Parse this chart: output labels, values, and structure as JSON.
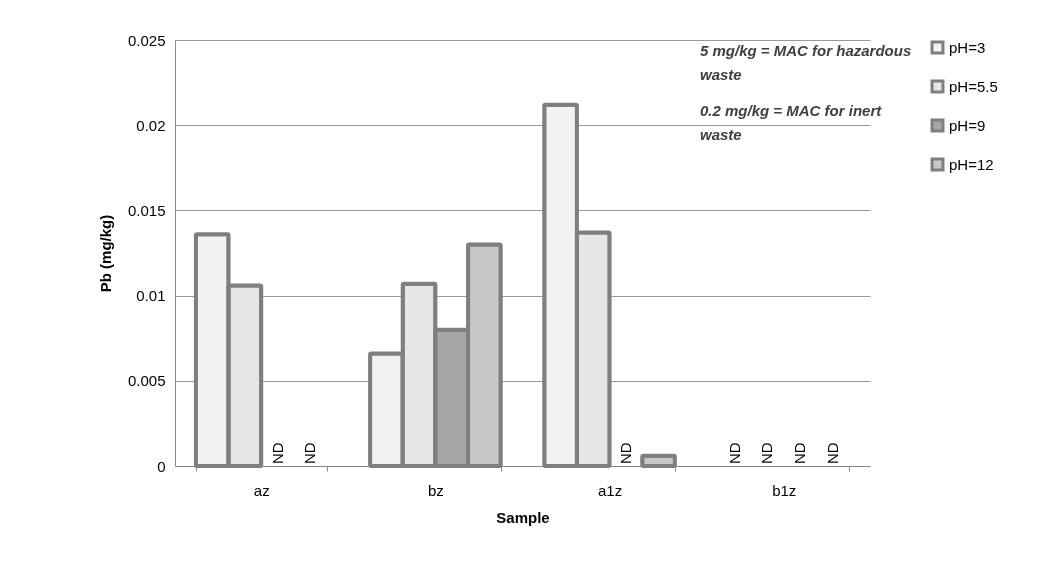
{
  "chart_data": {
    "type": "bar",
    "xlabel": "Sample",
    "ylabel": "Pb (mg/kg)",
    "categories": [
      "az",
      "bz",
      "a1z",
      "b1z"
    ],
    "series": [
      {
        "name": "pH=3",
        "color": "#f2f2f2",
        "values": [
          0.0136,
          0.0066,
          0.0212,
          null
        ],
        "value_labels": [
          null,
          null,
          null,
          "ND"
        ]
      },
      {
        "name": "pH=5.5",
        "color": "#e6e6e6",
        "values": [
          0.0106,
          0.0107,
          0.0137,
          null
        ],
        "value_labels": [
          null,
          null,
          null,
          "ND"
        ]
      },
      {
        "name": "pH=9",
        "color": "#a6a6a6",
        "values": [
          null,
          0.008,
          null,
          null
        ],
        "value_labels": [
          "ND",
          null,
          "ND",
          "ND"
        ]
      },
      {
        "name": "pH=12",
        "color": "#c8c8c8",
        "values": [
          null,
          0.013,
          0.0006,
          null
        ],
        "value_labels": [
          "ND",
          null,
          null,
          "ND"
        ]
      }
    ],
    "ylim": [
      0,
      0.025
    ],
    "yticks": [
      0,
      0.005,
      0.01,
      0.015,
      0.02,
      0.025
    ],
    "grid": "y",
    "legend": "right",
    "annotations": [
      "5 mg/kg = MAC for  hazardous waste",
      "0.2 mg/kg = MAC for  inert waste"
    ]
  }
}
